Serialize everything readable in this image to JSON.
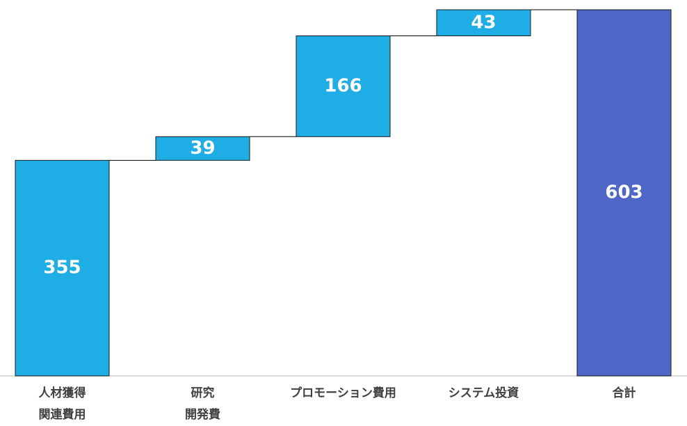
{
  "chart_data": {
    "type": "waterfall",
    "categories": [
      "人材獲得\n関連費用",
      "研究\n開発費",
      "プロモーション費用",
      "システム投資",
      "合計"
    ],
    "values": [
      355,
      39,
      166,
      43,
      603
    ],
    "totals": [
      false,
      false,
      false,
      false,
      true
    ],
    "color": "#1fade6",
    "total_color": "#4f67c6"
  }
}
